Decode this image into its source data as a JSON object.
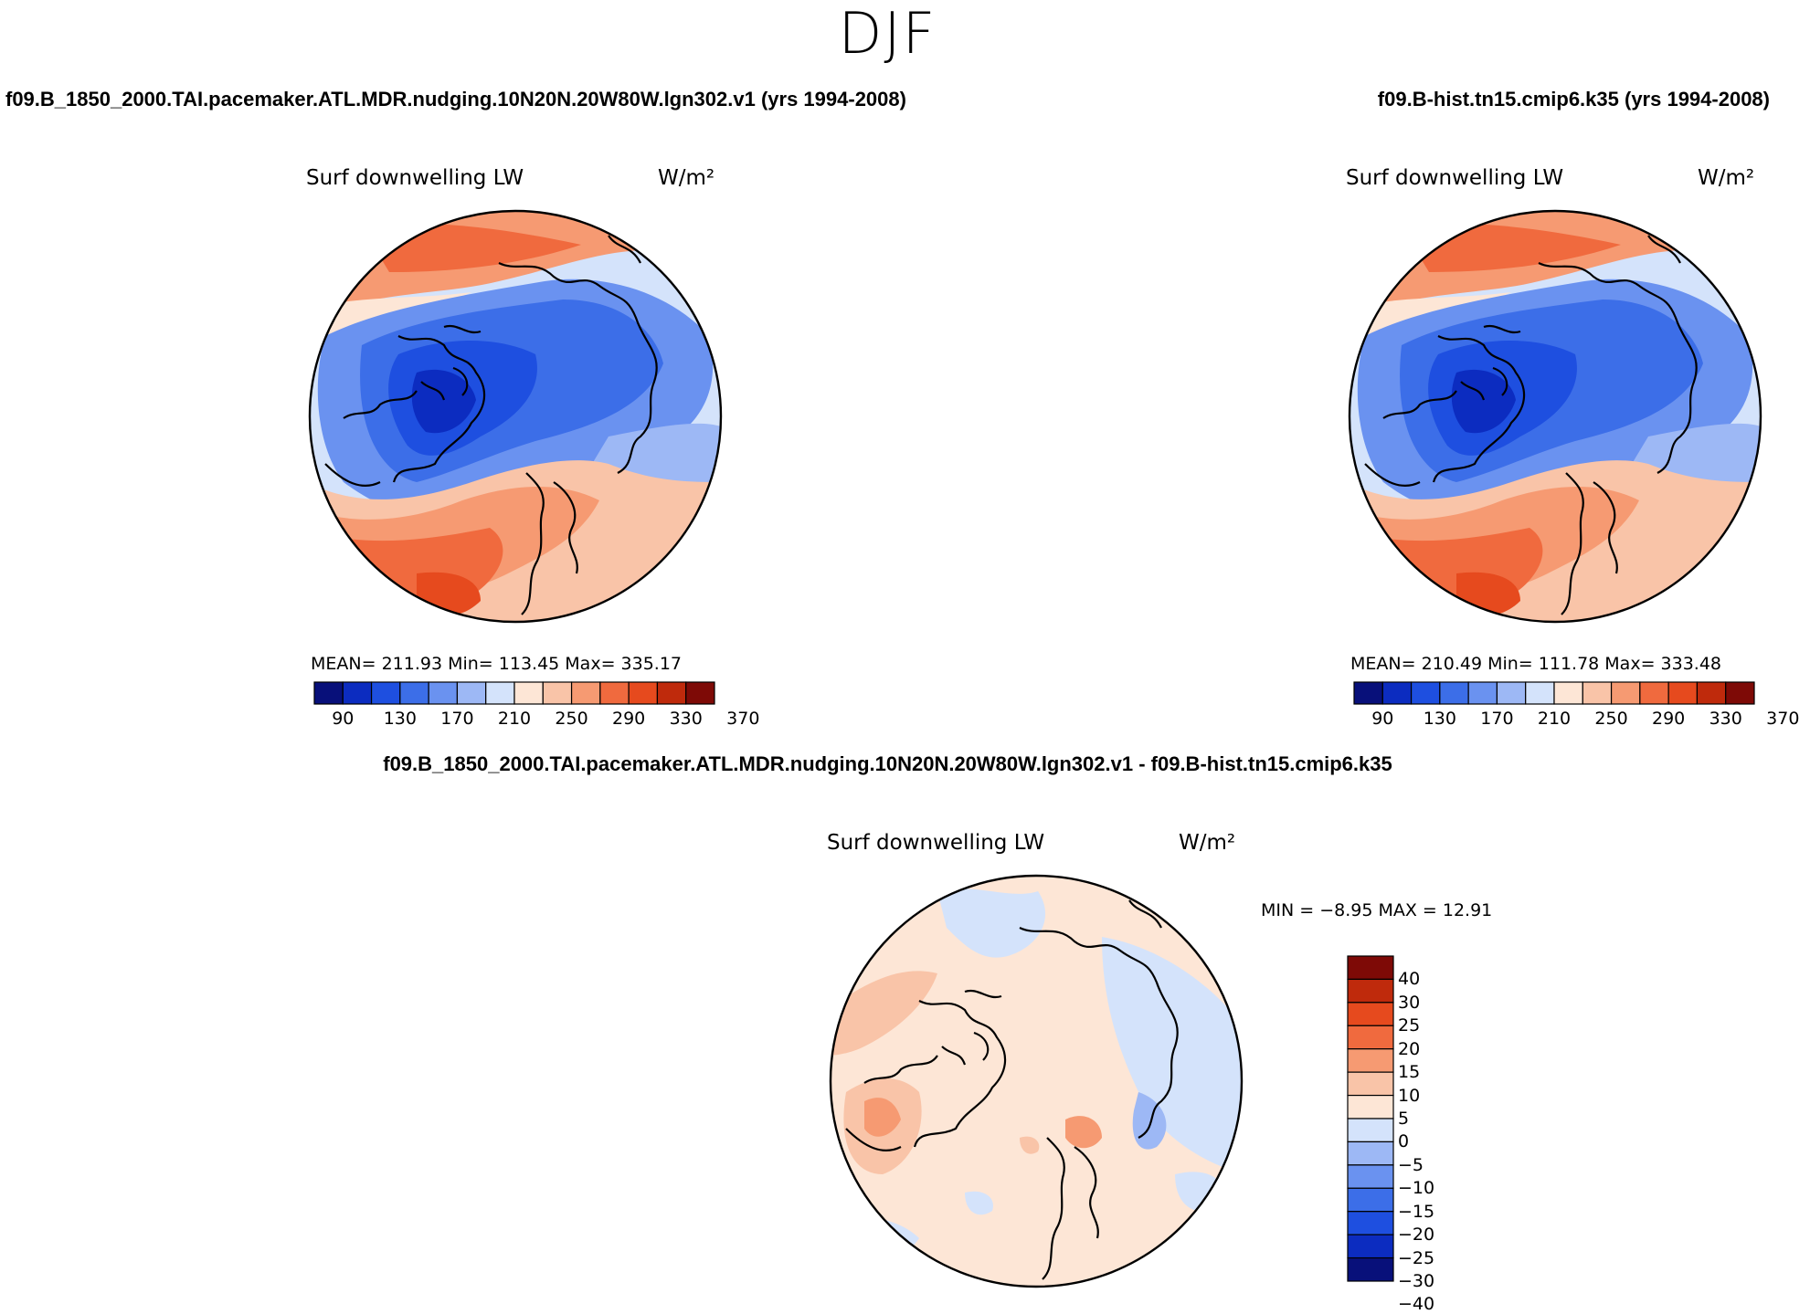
{
  "season_title": "DJF",
  "variable": "Surf downwelling LW",
  "units": "W/m²",
  "case_left": "f09.B_1850_2000.TAI.pacemaker.ATL.MDR.nudging.10N20N.20W80W.lgn302.v1 (yrs 1994-2008)",
  "case_right": "f09.B-hist.tn15.cmip6.k35 (yrs 1994-2008)",
  "diff_title": "f09.B_1850_2000.TAI.pacemaker.ATL.MDR.nudging.10N20N.20W80W.lgn302.v1 - f09.B-hist.tn15.cmip6.k35",
  "stats_left": "MEAN= 211.93   Min= 113.45   Max= 335.17",
  "stats_right": "MEAN= 210.49   Min= 111.78   Max= 333.48",
  "diff_stats": "MIN =   −8.95 MAX =   12.91",
  "colors": {
    "abs_scale": [
      "#08107a",
      "#0c2cc0",
      "#1e4fe0",
      "#3c6ee8",
      "#6a92f0",
      "#9db8f5",
      "#d4e3fb",
      "#fde6d6",
      "#f9c4a8",
      "#f69a72",
      "#f06a3e",
      "#e64a1e",
      "#bf2a0c",
      "#7e0a06"
    ],
    "diff_scale": [
      "#08107a",
      "#0c2cc0",
      "#1e4fe0",
      "#3c6ee8",
      "#6a92f0",
      "#9db8f5",
      "#d4e3fb",
      "#fde6d6",
      "#f9c4a8",
      "#f69a72",
      "#f06a3e",
      "#e64a1e",
      "#bf2a0c",
      "#7e0a06"
    ]
  },
  "chart_data": [
    {
      "type": "heatmap",
      "panel": "top-left",
      "projection": "north polar stereographic",
      "title": "Surf downwelling LW",
      "units": "W/m²",
      "mean": 211.93,
      "min": 113.45,
      "max": 335.17,
      "colorbar_ticks": [
        "90",
        "130",
        "170",
        "210",
        "250",
        "290",
        "330",
        "370"
      ],
      "colorbar_levels": [
        90,
        110,
        130,
        150,
        170,
        190,
        210,
        230,
        250,
        270,
        290,
        310,
        330,
        350,
        370
      ]
    },
    {
      "type": "heatmap",
      "panel": "top-right",
      "projection": "north polar stereographic",
      "title": "Surf downwelling LW",
      "units": "W/m²",
      "mean": 210.49,
      "min": 111.78,
      "max": 333.48,
      "colorbar_ticks": [
        "90",
        "130",
        "170",
        "210",
        "250",
        "290",
        "330",
        "370"
      ],
      "colorbar_levels": [
        90,
        110,
        130,
        150,
        170,
        190,
        210,
        230,
        250,
        270,
        290,
        310,
        330,
        350,
        370
      ]
    },
    {
      "type": "heatmap",
      "panel": "bottom-center difference",
      "projection": "north polar stereographic",
      "title": "Surf downwelling LW",
      "units": "W/m²",
      "min": -8.95,
      "max": 12.91,
      "colorbar_ticks": [
        "40",
        "30",
        "25",
        "20",
        "15",
        "10",
        "5",
        "0",
        "−5",
        "−10",
        "−15",
        "−20",
        "−25",
        "−30",
        "−40"
      ]
    }
  ]
}
